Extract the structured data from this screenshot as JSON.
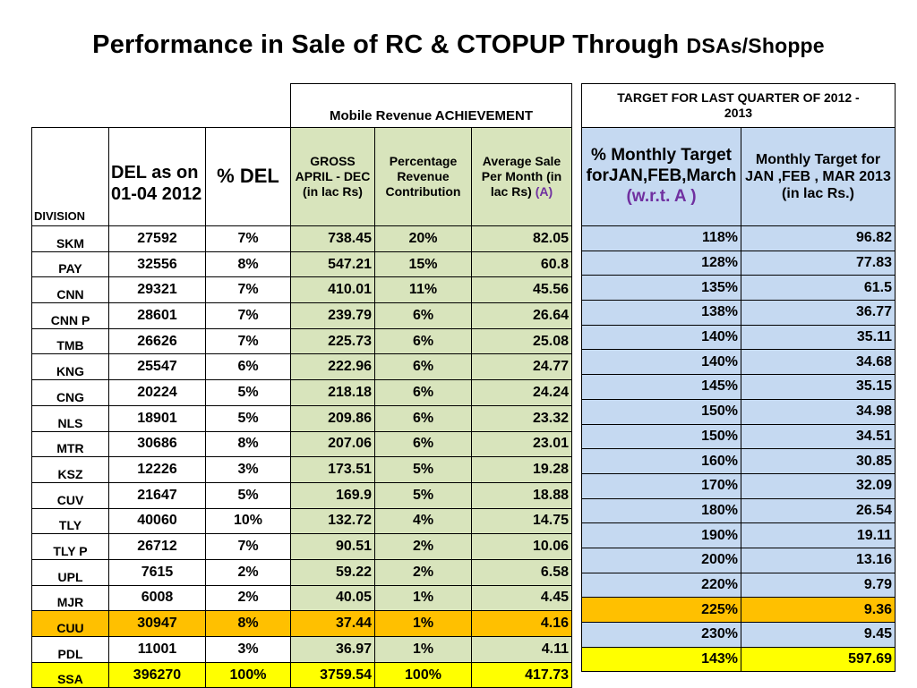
{
  "title": {
    "main": "Performance  in  Sale  of  RC  &  CTOPUP  Through ",
    "small": "DSAs/Shoppe"
  },
  "headers": {
    "achievement_group": "Mobile  Revenue  ACHIEVEMENT",
    "target_group": "TARGET   FOR  LAST  QUARTER  OF 2012 - 2013",
    "division": "DIVISION",
    "del_as_on": "DEL as on   01-04 2012",
    "pct_del": "% DEL",
    "gross": "GROSS APRIL - DEC   (in lac Rs)",
    "pct_rev": "Percentage Revenue Contribution",
    "avg_sale": "Average Sale  Per Month    (in lac Rs)",
    "avg_sale_suffix": "(A)",
    "monthly_target_pct": "%  Monthly Target forJAN,FEB,March",
    "monthly_target_pct_suffix": "(w.r.t.  A )",
    "monthly_target": "Monthly  Target for JAN ,FEB , MAR 2013   (in lac  Rs.)"
  },
  "rows": [
    {
      "division": "SKM",
      "del": "27592",
      "pct_del": "7%",
      "gross": "738.45",
      "pct_rev": "20%",
      "avg": "82.05",
      "target_pct": "118%",
      "target": "96.82"
    },
    {
      "division": "PAY",
      "del": "32556",
      "pct_del": "8%",
      "gross": "547.21",
      "pct_rev": "15%",
      "avg": "60.8",
      "target_pct": "128%",
      "target": "77.83"
    },
    {
      "division": "CNN",
      "del": "29321",
      "pct_del": "7%",
      "gross": "410.01",
      "pct_rev": "11%",
      "avg": "45.56",
      "target_pct": "135%",
      "target": "61.5"
    },
    {
      "division": "CNN  P",
      "del": "28601",
      "pct_del": "7%",
      "gross": "239.79",
      "pct_rev": "6%",
      "avg": "26.64",
      "target_pct": "138%",
      "target": "36.77"
    },
    {
      "division": "TMB",
      "del": "26626",
      "pct_del": "7%",
      "gross": "225.73",
      "pct_rev": "6%",
      "avg": "25.08",
      "target_pct": "140%",
      "target": "35.11"
    },
    {
      "division": "KNG",
      "del": "25547",
      "pct_del": "6%",
      "gross": "222.96",
      "pct_rev": "6%",
      "avg": "24.77",
      "target_pct": "140%",
      "target": "34.68"
    },
    {
      "division": "CNG",
      "del": "20224",
      "pct_del": "5%",
      "gross": "218.18",
      "pct_rev": "6%",
      "avg": "24.24",
      "target_pct": "145%",
      "target": "35.15"
    },
    {
      "division": "NLS",
      "del": "18901",
      "pct_del": "5%",
      "gross": "209.86",
      "pct_rev": "6%",
      "avg": "23.32",
      "target_pct": "150%",
      "target": "34.98"
    },
    {
      "division": "MTR",
      "del": "30686",
      "pct_del": "8%",
      "gross": "207.06",
      "pct_rev": "6%",
      "avg": "23.01",
      "target_pct": "150%",
      "target": "34.51"
    },
    {
      "division": "KSZ",
      "del": "12226",
      "pct_del": "3%",
      "gross": "173.51",
      "pct_rev": "5%",
      "avg": "19.28",
      "target_pct": "160%",
      "target": "30.85"
    },
    {
      "division": "CUV",
      "del": "21647",
      "pct_del": "5%",
      "gross": "169.9",
      "pct_rev": "5%",
      "avg": "18.88",
      "target_pct": "170%",
      "target": "32.09"
    },
    {
      "division": "TLY",
      "del": "40060",
      "pct_del": "10%",
      "gross": "132.72",
      "pct_rev": "4%",
      "avg": "14.75",
      "target_pct": "180%",
      "target": "26.54"
    },
    {
      "division": "TLY P",
      "del": "26712",
      "pct_del": "7%",
      "gross": "90.51",
      "pct_rev": "2%",
      "avg": "10.06",
      "target_pct": "190%",
      "target": "19.11"
    },
    {
      "division": "UPL",
      "del": "7615",
      "pct_del": "2%",
      "gross": "59.22",
      "pct_rev": "2%",
      "avg": "6.58",
      "target_pct": "200%",
      "target": "13.16"
    },
    {
      "division": "MJR",
      "del": "6008",
      "pct_del": "2%",
      "gross": "40.05",
      "pct_rev": "1%",
      "avg": "4.45",
      "target_pct": "220%",
      "target": "9.79"
    },
    {
      "division": "CUU",
      "del": "30947",
      "pct_del": "8%",
      "gross": "37.44",
      "pct_rev": "1%",
      "avg": "4.16",
      "target_pct": "225%",
      "target": "9.36"
    },
    {
      "division": "PDL",
      "del": "11001",
      "pct_del": "3%",
      "gross": "36.97",
      "pct_rev": "1%",
      "avg": "4.11",
      "target_pct": "230%",
      "target": "9.45"
    },
    {
      "division": "SSA",
      "del": "396270",
      "pct_del": "100%",
      "gross": "3759.54",
      "pct_rev": "100%",
      "avg": "417.73",
      "target_pct": "143%",
      "target": "597.69"
    }
  ],
  "highlight_colors": {
    "CUU": "#ffc000",
    "SSA": "#ffff00",
    "achievement": "#d8e4bc",
    "target": "#c5d9f1"
  }
}
